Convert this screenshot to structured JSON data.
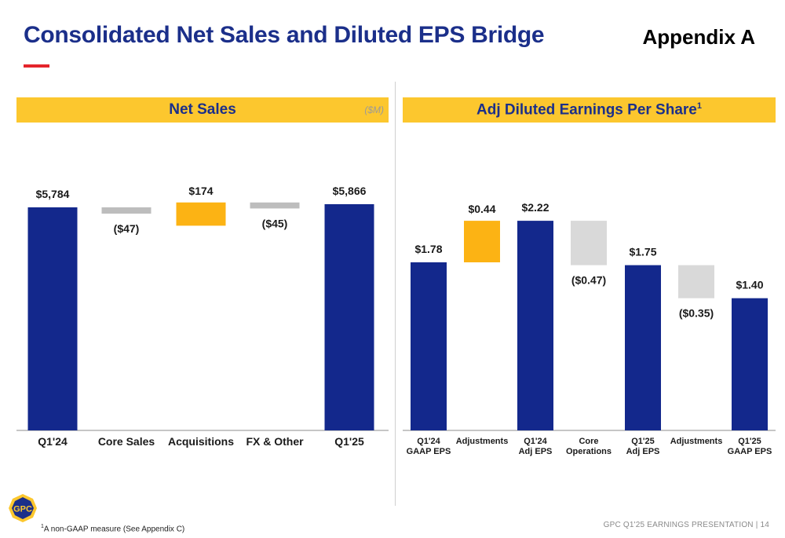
{
  "header": {
    "title": "Consolidated Net Sales and Diluted EPS Bridge",
    "appendix": "Appendix A"
  },
  "left_panel": {
    "title": "Net Sales",
    "units": "($M)"
  },
  "right_panel": {
    "title": "Adj Diluted Earnings Per Share",
    "title_sup": "1"
  },
  "footnote": {
    "sup": "1",
    "text": "A non-GAAP measure (See Appendix C)"
  },
  "footer": "GPC Q1'25 EARNINGS PRESENTATION  |  14",
  "logo": {
    "text": "GPC"
  },
  "colors": {
    "navy": "#13288c",
    "gold": "#fcb314",
    "gray_small": "#bdbdbd",
    "gray_large": "#d9d9d9"
  },
  "chart_data": [
    {
      "type": "bar",
      "subtype": "waterfall",
      "title": "Net Sales",
      "units": "($M)",
      "ylim": [
        0,
        5900
      ],
      "items": [
        {
          "category": "Q1'24",
          "kind": "total",
          "value": 5784,
          "label": "$5,784"
        },
        {
          "category": "Core Sales",
          "kind": "decrease",
          "value": -47,
          "label": "($47)"
        },
        {
          "category": "Acquisitions",
          "kind": "increase",
          "value": 174,
          "label": "$174"
        },
        {
          "category": "FX & Other",
          "kind": "decrease",
          "value": -45,
          "label": "($45)"
        },
        {
          "category": "Q1'25",
          "kind": "total",
          "value": 5866,
          "label": "$5,866"
        }
      ]
    },
    {
      "type": "bar",
      "subtype": "waterfall",
      "title": "Adj Diluted Earnings Per Share",
      "ylim": [
        0,
        2.3
      ],
      "items": [
        {
          "category": "Q1'24 GAAP EPS",
          "kind": "total",
          "value": 1.78,
          "label": "$1.78"
        },
        {
          "category": "Adjustments",
          "kind": "increase",
          "value": 0.44,
          "label": "$0.44"
        },
        {
          "category": "Q1'24 Adj EPS",
          "kind": "total",
          "value": 2.22,
          "label": "$2.22"
        },
        {
          "category": "Core Operations",
          "kind": "decrease",
          "value": -0.47,
          "label": "($0.47)"
        },
        {
          "category": "Q1'25 Adj EPS",
          "kind": "total",
          "value": 1.75,
          "label": "$1.75"
        },
        {
          "category": "Adjustments",
          "kind": "decrease",
          "value": -0.35,
          "label": "($0.35)"
        },
        {
          "category": "Q1'25 GAAP EPS",
          "kind": "total",
          "value": 1.4,
          "label": "$1.40"
        }
      ]
    }
  ]
}
